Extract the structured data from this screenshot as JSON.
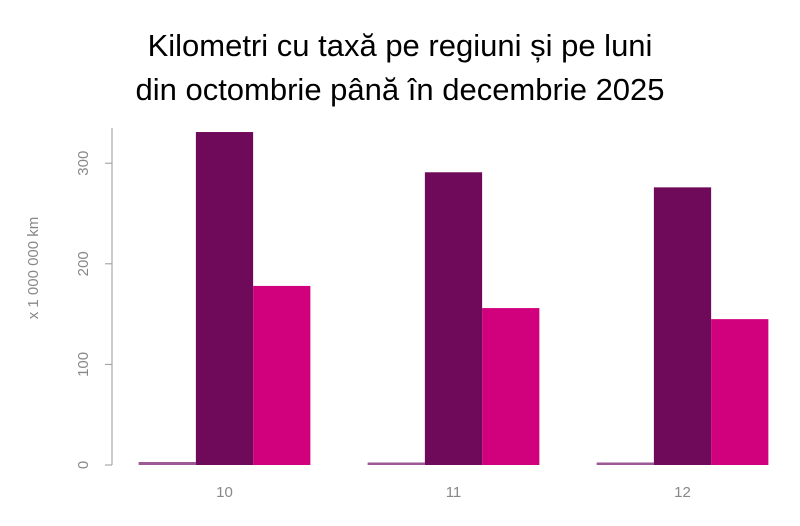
{
  "chart_data": {
    "type": "bar",
    "title": [
      "Kilometri cu taxă pe regiuni și pe luni",
      "din octombrie până în decembrie 2025"
    ],
    "y_label": "x 1 000 000 km",
    "categories": [
      "10",
      "11",
      "12"
    ],
    "series": [
      {
        "color": "#9b5a95",
        "values": [
          3,
          2.5,
          2.5
        ]
      },
      {
        "color": "#6f0a5a",
        "values": [
          331,
          291,
          276
        ]
      },
      {
        "color": "#d1007c",
        "values": [
          178,
          156,
          145
        ]
      }
    ],
    "ylim": [
      0,
      335
    ],
    "yticks": [
      0,
      100,
      200,
      300
    ],
    "grid": false
  }
}
